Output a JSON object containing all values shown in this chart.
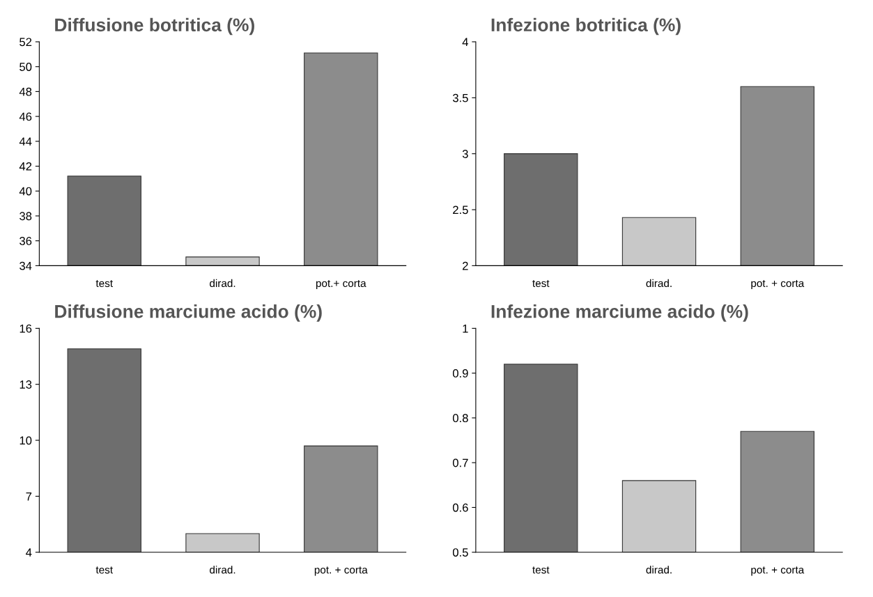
{
  "chart_data": [
    {
      "type": "bar",
      "title": "Diffusione botritica (%)",
      "categories": [
        "test",
        "dirad.",
        "pot.+ corta"
      ],
      "values": [
        41.2,
        34.7,
        51.1
      ],
      "colors": [
        "#6e6e6e",
        "#c8c8c8",
        "#8c8c8c"
      ],
      "ylim": [
        34,
        52
      ],
      "yticks": [
        34,
        36,
        38,
        40,
        42,
        44,
        46,
        48,
        50,
        52
      ],
      "grid": false
    },
    {
      "type": "bar",
      "title": "Infezione botritica (%)",
      "categories": [
        "test",
        "dirad.",
        "pot. + corta"
      ],
      "values": [
        3.0,
        2.43,
        3.6
      ],
      "colors": [
        "#6e6e6e",
        "#c8c8c8",
        "#8c8c8c"
      ],
      "ylim": [
        2,
        4
      ],
      "yticks": [
        2,
        2.5,
        3,
        3.5,
        4
      ],
      "grid": false
    },
    {
      "type": "bar",
      "title": "Diffusione marciume acido (%)",
      "categories": [
        "test",
        "dirad.",
        "pot. + corta"
      ],
      "values": [
        14.9,
        5.0,
        9.7
      ],
      "colors": [
        "#6e6e6e",
        "#c8c8c8",
        "#8c8c8c"
      ],
      "ylim": [
        4,
        16
      ],
      "yticks": [
        4,
        7,
        10,
        13,
        16
      ],
      "grid": false
    },
    {
      "type": "bar",
      "title": "Infezione marciume acido (%)",
      "categories": [
        "test",
        "dirad.",
        "pot. + corta"
      ],
      "values": [
        0.92,
        0.66,
        0.77
      ],
      "colors": [
        "#6e6e6e",
        "#c8c8c8",
        "#8c8c8c"
      ],
      "ylim": [
        0.5,
        1
      ],
      "yticks": [
        0.5,
        0.6,
        0.7,
        0.8,
        0.9,
        1
      ],
      "grid": false
    }
  ]
}
